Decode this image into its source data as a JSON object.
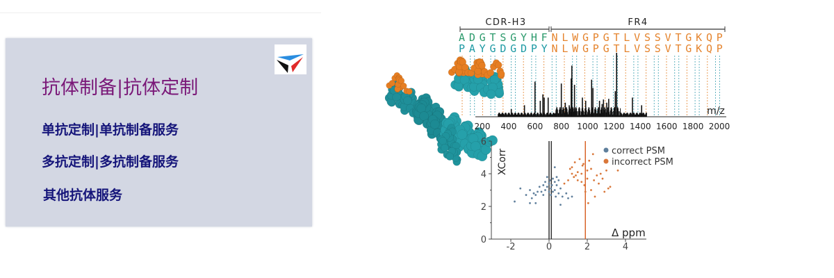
{
  "menu": {
    "title": "抗体制备|抗体定制",
    "items": [
      {
        "label": "单抗定制|单抗制备服务"
      },
      {
        "label": "多抗定制|多抗制备服务"
      },
      {
        "label": "其他抗体服务"
      }
    ],
    "logo_colors": {
      "blue": "#2a8de0",
      "red": "#e02a2a",
      "black": "#111111"
    }
  },
  "colors": {
    "panel_bg": "#d3d7e3",
    "title": "#7a1878",
    "items": "#15157a",
    "teal": "#1e9aa4",
    "orange": "#e5842e",
    "green": "#2c9a6c"
  },
  "chart_data": [
    {
      "type": "bar",
      "title": "",
      "region_labels": [
        "CDR-H3",
        "FR4"
      ],
      "sequence_rows": [
        {
          "cdr": "ADGTSGYHF",
          "fr": "NLWGPGTLVSSVTGKQP"
        },
        {
          "cdr": "PAYGDGDPY",
          "fr": "NLWGPGTLVSSVTGKQP"
        }
      ],
      "xlabel": "m/z",
      "xlim": [
        200,
        2000
      ],
      "xticks": [
        "200",
        "400",
        "600",
        "800",
        "1000",
        "1200",
        "1400",
        "1600",
        "1800",
        "2000"
      ],
      "peaks": [
        [
          340,
          0.04
        ],
        [
          360,
          0.05
        ],
        [
          420,
          0.12
        ],
        [
          520,
          0.18
        ],
        [
          600,
          0.55
        ],
        [
          640,
          0.25
        ],
        [
          660,
          0.35
        ],
        [
          670,
          0.3
        ],
        [
          700,
          0.3
        ],
        [
          760,
          0.1
        ],
        [
          800,
          0.52
        ],
        [
          830,
          0.22
        ],
        [
          860,
          0.18
        ],
        [
          875,
          0.6
        ],
        [
          880,
          0.8
        ],
        [
          900,
          0.5
        ],
        [
          960,
          0.3
        ],
        [
          985,
          0.25
        ],
        [
          1030,
          0.58
        ],
        [
          1040,
          0.45
        ],
        [
          1090,
          0.25
        ],
        [
          1110,
          0.2
        ],
        [
          1120,
          0.27
        ],
        [
          1145,
          0.22
        ],
        [
          1160,
          0.28
        ],
        [
          1210,
          0.4
        ],
        [
          1220,
          1.0
        ],
        [
          1290,
          0.05
        ],
        [
          1340,
          0.3
        ],
        [
          1410,
          0.18
        ]
      ]
    },
    {
      "type": "scatter",
      "xlabel": "Δ ppm",
      "ylabel": "XCorr",
      "xlim": [
        -3,
        5
      ],
      "ylim": [
        0,
        6
      ],
      "xticks": [
        "-2",
        "0",
        "2",
        "4"
      ],
      "yticks": [
        "0",
        "2",
        "4",
        "6"
      ],
      "legend": "top-right",
      "vlines": [
        {
          "x": 0,
          "color": "#333333"
        },
        {
          "x": 0.12,
          "color": "#333333"
        },
        {
          "x": 1.9,
          "color": "#d9642a"
        }
      ],
      "series": [
        {
          "name": "correct PSM",
          "color": "#5f7f9c",
          "points": [
            [
              -1.8,
              2.3
            ],
            [
              -1.5,
              3.1
            ],
            [
              -1.2,
              2.7
            ],
            [
              -1.0,
              2.2
            ],
            [
              -1.0,
              3.0
            ],
            [
              -0.9,
              2.5
            ],
            [
              -0.8,
              2.8
            ],
            [
              -0.7,
              2.7
            ],
            [
              -0.7,
              2.2
            ],
            [
              -0.6,
              2.9
            ],
            [
              -0.5,
              3.2
            ],
            [
              -0.4,
              2.9
            ],
            [
              -0.3,
              3.3
            ],
            [
              -0.2,
              3.5
            ],
            [
              -0.2,
              3.0
            ],
            [
              -0.1,
              3.8
            ],
            [
              -0.1,
              3.2
            ],
            [
              0.0,
              2.9
            ],
            [
              0.0,
              3.4
            ],
            [
              0.05,
              3.6
            ],
            [
              0.1,
              3.1
            ],
            [
              0.1,
              2.7
            ],
            [
              0.15,
              3.3
            ],
            [
              0.2,
              3.7
            ],
            [
              0.2,
              2.9
            ],
            [
              0.3,
              3.5
            ],
            [
              0.3,
              3.0
            ],
            [
              0.35,
              2.6
            ],
            [
              0.4,
              3.8
            ],
            [
              0.4,
              3.3
            ],
            [
              0.5,
              3.6
            ],
            [
              0.5,
              2.8
            ],
            [
              0.6,
              2.1
            ],
            [
              0.6,
              3.1
            ],
            [
              0.7,
              2.6
            ],
            [
              0.9,
              2.8
            ],
            [
              1.0,
              2.5
            ],
            [
              1.2,
              2.6
            ],
            [
              0.3,
              4.4
            ],
            [
              -0.3,
              2.7
            ]
          ]
        },
        {
          "name": "incorrect PSM",
          "color": "#d9773a",
          "points": [
            [
              0.8,
              3.4
            ],
            [
              1.0,
              3.6
            ],
            [
              1.1,
              4.3
            ],
            [
              1.2,
              4.4
            ],
            [
              1.3,
              3.8
            ],
            [
              1.35,
              4.7
            ],
            [
              1.4,
              3.9
            ],
            [
              1.5,
              3.6
            ],
            [
              1.5,
              4.1
            ],
            [
              1.6,
              4.9
            ],
            [
              1.7,
              3.5
            ],
            [
              1.7,
              4.0
            ],
            [
              1.8,
              4.6
            ],
            [
              1.85,
              3.3
            ],
            [
              1.9,
              2.9
            ],
            [
              2.0,
              4.2
            ],
            [
              2.0,
              3.7
            ],
            [
              2.05,
              2.2
            ],
            [
              2.1,
              4.8
            ],
            [
              2.2,
              3.0
            ],
            [
              2.2,
              4.3
            ],
            [
              2.3,
              5.2
            ],
            [
              2.35,
              3.6
            ],
            [
              2.4,
              2.6
            ],
            [
              2.5,
              3.9
            ],
            [
              2.6,
              3.4
            ],
            [
              2.7,
              4.0
            ],
            [
              2.8,
              3.7
            ],
            [
              2.9,
              2.9
            ],
            [
              3.0,
              4.2
            ],
            [
              3.1,
              3.1
            ],
            [
              3.2,
              3.2
            ],
            [
              3.6,
              4.2
            ],
            [
              1.2,
              4.0
            ],
            [
              1.75,
              4.5
            ]
          ]
        }
      ]
    }
  ]
}
